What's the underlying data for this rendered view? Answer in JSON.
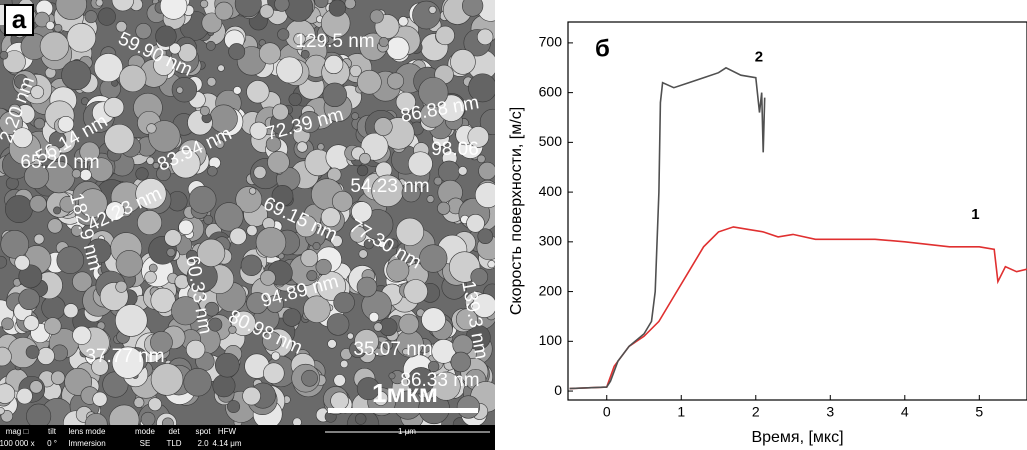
{
  "panel_a": {
    "label": "а",
    "measurements": [
      "129.5 nm",
      "59.90 nm",
      "2.20 nm",
      "56.14 nm",
      "72.39 nm",
      "86.88 nm",
      "65.20 nm",
      "83.94 nm",
      "98.06",
      "54.23 nm",
      "42.23 nm",
      "182.9 nm",
      "69.15 nm",
      "77.30 nm",
      "60.33 nm",
      "94.89 nm",
      "80.98 nm",
      "37.77 nm",
      "35.07 nm",
      "86.33 nm",
      "139.3 nm"
    ],
    "scale_bar": "1мкм",
    "info_bar": {
      "headers": [
        "mag □",
        "tilt",
        "lens mode",
        "mode",
        "det",
        "spot",
        "HFW"
      ],
      "values": [
        "100 000 x",
        "0 °",
        "Immersion",
        "SE",
        "TLD",
        "2.0",
        "4.14 μm"
      ],
      "scale": "1 μm"
    }
  },
  "chart_data": {
    "type": "line",
    "panel_label": "б",
    "x_label": "Время, [мкс]",
    "y_label": "Скорость поверхности, [м/с]",
    "xlim": [
      -0.52,
      5.64
    ],
    "ylim": [
      -18,
      742
    ],
    "xticks": [
      0,
      1,
      2,
      3,
      4,
      5
    ],
    "yticks": [
      0,
      100,
      200,
      300,
      400,
      500,
      600,
      700
    ],
    "series": [
      {
        "name": "1",
        "color": "#e03030",
        "x": [
          -0.5,
          0,
          0.1,
          0.3,
          0.5,
          0.7,
          0.9,
          1.1,
          1.3,
          1.5,
          1.7,
          1.9,
          2.1,
          2.3,
          2.5,
          2.8,
          3.2,
          3.6,
          4.0,
          4.3,
          4.6,
          5.0,
          5.2,
          5.25,
          5.35,
          5.5,
          5.64
        ],
        "values": [
          5,
          8,
          50,
          90,
          110,
          140,
          190,
          240,
          290,
          320,
          330,
          325,
          320,
          310,
          315,
          305,
          305,
          305,
          300,
          295,
          290,
          290,
          285,
          220,
          250,
          240,
          245
        ]
      },
      {
        "name": "2",
        "color": "#505050",
        "x": [
          -0.5,
          0,
          0.05,
          0.15,
          0.3,
          0.5,
          0.6,
          0.65,
          0.7,
          0.72,
          0.75,
          0.9,
          1.1,
          1.3,
          1.5,
          1.6,
          1.8,
          2.0,
          2.05,
          2.08,
          2.1,
          2.12
        ],
        "values": [
          5,
          8,
          20,
          60,
          90,
          115,
          140,
          200,
          400,
          580,
          620,
          610,
          620,
          630,
          640,
          650,
          635,
          630,
          560,
          600,
          480,
          590
        ]
      }
    ]
  }
}
